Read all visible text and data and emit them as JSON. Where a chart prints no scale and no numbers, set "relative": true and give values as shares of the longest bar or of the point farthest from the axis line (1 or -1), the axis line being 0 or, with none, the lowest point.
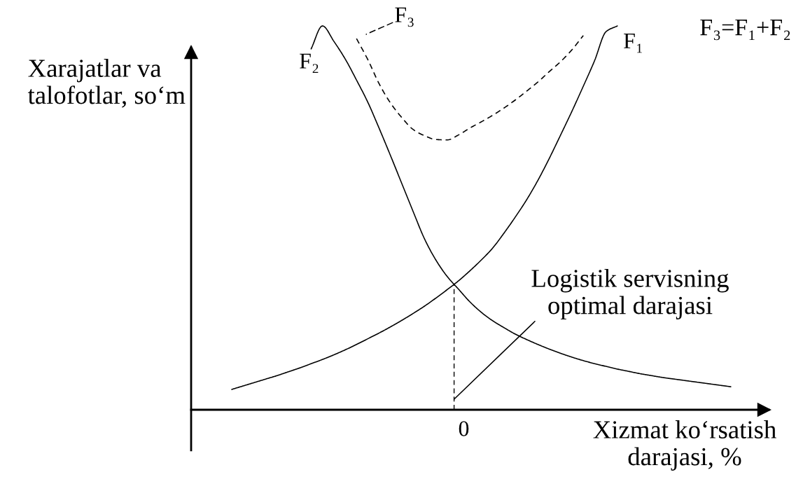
{
  "chart_data": {
    "type": "line",
    "relative": true,
    "categories": [
      null,
      null,
      null,
      null,
      null,
      null,
      null,
      null,
      null,
      null,
      null,
      null,
      null,
      null,
      null,
      null,
      null,
      null,
      null,
      null,
      null,
      null,
      null,
      null,
      null,
      null,
      null,
      null,
      null,
      null,
      null,
      null,
      null,
      null,
      null,
      null,
      null,
      null,
      null,
      null,
      null,
      null,
      null,
      null,
      null
    ],
    "xlabel": "Xizmat ko‘rsatish\ndarajasi, %",
    "ylabel": "Xarajatlar va\ntalofotlar, so‘m",
    "series": [
      {
        "name": "F₁",
        "color": "#000000",
        "values": [
          0.053,
          0.062,
          0.071,
          0.08,
          0.089,
          0.099,
          0.109,
          0.12,
          0.131,
          0.143,
          0.156,
          0.17,
          0.185,
          0.2,
          0.216,
          0.233,
          0.251,
          0.27,
          0.291,
          0.313,
          0.336,
          0.362,
          0.39,
          0.421,
          0.46,
          0.502,
          0.547,
          0.598,
          0.655,
          0.716,
          0.778,
          0.843,
          0.91,
          0.985,
          1.0,
          null,
          null,
          null,
          null,
          null,
          null,
          null,
          null,
          null,
          null
        ]
      },
      {
        "name": "F₂",
        "color": "#000000",
        "values": [
          null,
          null,
          null,
          null,
          null,
          null,
          null,
          0.94,
          1.0,
          0.96,
          0.914,
          0.859,
          0.801,
          0.733,
          0.662,
          0.589,
          0.516,
          0.445,
          0.39,
          0.347,
          0.314,
          0.281,
          0.254,
          0.232,
          0.214,
          0.197,
          0.183,
          0.17,
          0.158,
          0.147,
          0.137,
          0.128,
          0.12,
          0.113,
          0.106,
          0.1,
          0.094,
          0.089,
          0.084,
          0.08,
          0.076,
          0.072,
          0.068,
          0.064,
          0.06
        ]
      },
      {
        "name": "F₃",
        "color": "#000000",
        "line_style": "dashed",
        "values": [
          null,
          null,
          null,
          null,
          null,
          null,
          null,
          null,
          null,
          null,
          null,
          0.967,
          0.912,
          0.849,
          0.799,
          0.761,
          0.73,
          0.714,
          0.704,
          0.703,
          0.716,
          0.734,
          0.75,
          0.767,
          0.786,
          0.807,
          0.83,
          0.854,
          0.881,
          0.907,
          0.938,
          0.975,
          null,
          null,
          null,
          null,
          null,
          null,
          null,
          null,
          null,
          null,
          null,
          null,
          null
        ]
      }
    ],
    "annotations": [
      "0",
      "Logistik servisning\noptimal darajasi",
      "F₃=F₁+F₂"
    ]
  }
}
